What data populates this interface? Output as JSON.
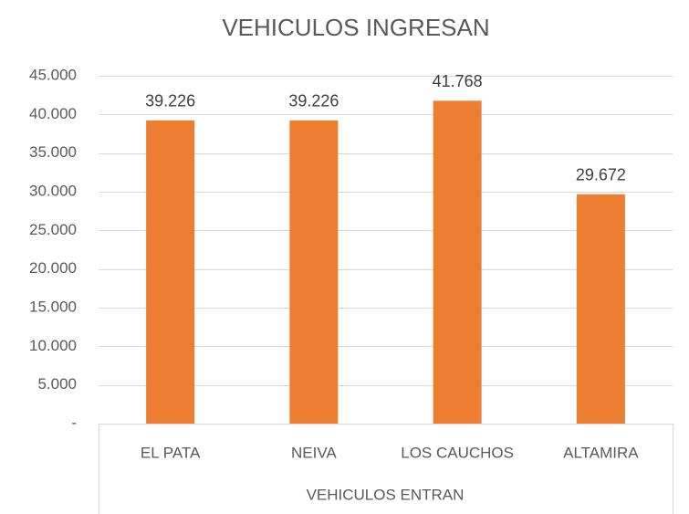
{
  "chart_data": {
    "type": "bar",
    "title": "VEHICULOS INGRESAN",
    "x_label": "VEHICULOS ENTRAN",
    "categories": [
      "EL PATA",
      "NEIVA",
      "LOS CAUCHOS",
      "ALTAMIRA"
    ],
    "values": [
      39226,
      39226,
      41768,
      29672
    ],
    "value_labels": [
      "39.226",
      "39.226",
      "41.768",
      "29.672"
    ],
    "color": "#ed7d31",
    "ylim": [
      0,
      45000
    ],
    "yticks": [
      {
        "value": 0,
        "label": "-"
      },
      {
        "value": 5000,
        "label": "5.000"
      },
      {
        "value": 10000,
        "label": "10.000"
      },
      {
        "value": 15000,
        "label": "15.000"
      },
      {
        "value": 20000,
        "label": "20.000"
      },
      {
        "value": 25000,
        "label": "25.000"
      },
      {
        "value": 30000,
        "label": "30.000"
      },
      {
        "value": 35000,
        "label": "35.000"
      },
      {
        "value": 40000,
        "label": "40.000"
      },
      {
        "value": 45000,
        "label": "45.000"
      }
    ],
    "grid": true
  }
}
